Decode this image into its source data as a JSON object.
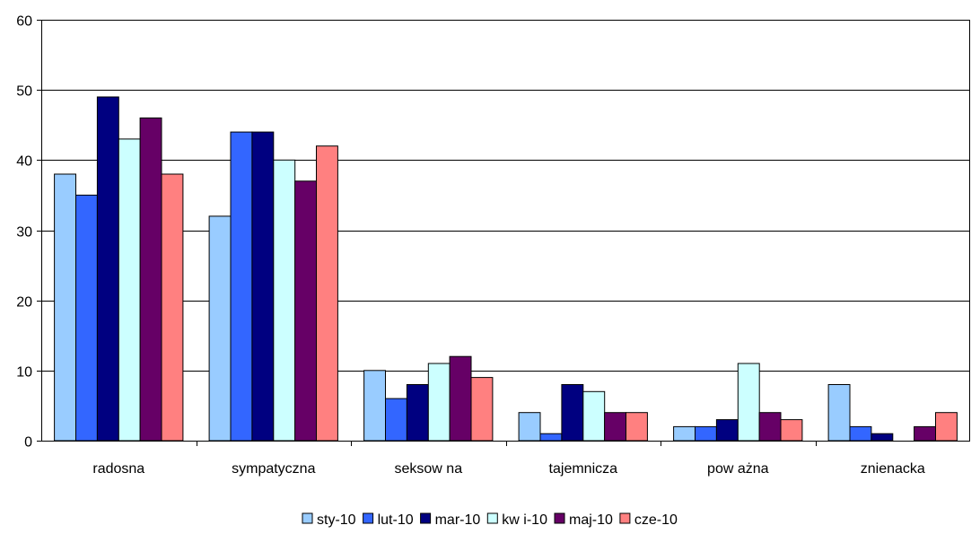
{
  "chart_data": {
    "type": "bar",
    "title": "",
    "xlabel": "",
    "ylabel": "",
    "categories": [
      "radosna",
      "sympatyczna",
      "seksow na",
      "tajemnicza",
      "pow ażna",
      "znienacka"
    ],
    "ylim": [
      0,
      60
    ],
    "yticks": [
      "0",
      "10",
      "20",
      "30",
      "40",
      "50",
      "60"
    ],
    "grid": true,
    "legend_position": "bottom",
    "series": [
      {
        "name": "sty-10",
        "color": "#99ccff",
        "values": [
          38,
          32,
          10,
          4,
          2,
          8
        ]
      },
      {
        "name": "lut-10",
        "color": "#3366ff",
        "values": [
          35,
          44,
          6,
          1,
          2,
          2
        ]
      },
      {
        "name": "mar-10",
        "color": "#000080",
        "values": [
          49,
          44,
          8,
          8,
          3,
          1
        ]
      },
      {
        "name": "kw i-10",
        "color": "#ccffff",
        "values": [
          43,
          40,
          11,
          7,
          11,
          0
        ]
      },
      {
        "name": "maj-10",
        "color": "#660066",
        "values": [
          46,
          37,
          12,
          4,
          4,
          2
        ]
      },
      {
        "name": "cze-10",
        "color": "#ff8080",
        "values": [
          38,
          42,
          9,
          4,
          3,
          4
        ]
      }
    ]
  }
}
